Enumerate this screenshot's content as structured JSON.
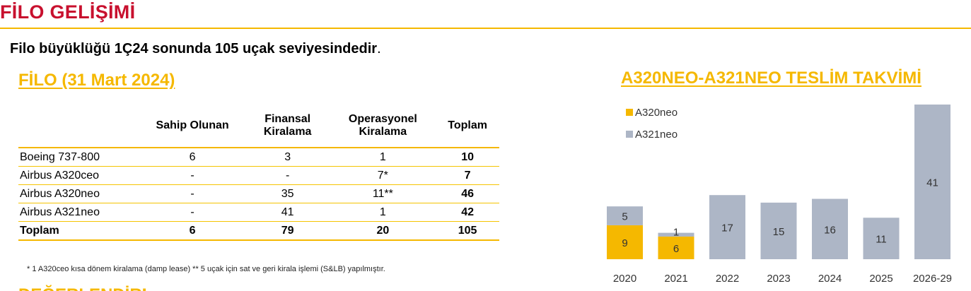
{
  "header": {
    "title": "FİLO GELİŞİMİ",
    "subtitle_bold": "Filo büyüklüğü 1Ç24 sonunda 105 uçak seviyesindedir",
    "subtitle_tail": "."
  },
  "fleet": {
    "title": "FİLO (31 Mart 2024)",
    "columns": [
      "Sahip Olunan",
      "Finansal Kiralama",
      "Operasyonel Kiralama",
      "Toplam"
    ],
    "rows": [
      {
        "type": "Boeing 737-800",
        "owned": "6",
        "finance": "3",
        "operating": "1",
        "total": "10"
      },
      {
        "type": "Airbus A320ceo",
        "owned": "-",
        "finance": "-",
        "operating": "7*",
        "total": "7"
      },
      {
        "type": "Airbus A320neo",
        "owned": "-",
        "finance": "35",
        "operating": "11**",
        "total": "46"
      },
      {
        "type": "Airbus A321neo",
        "owned": "-",
        "finance": "41",
        "operating": "1",
        "total": "42"
      }
    ],
    "total_row": {
      "type": "Toplam",
      "owned": "6",
      "finance": "79",
      "operating": "20",
      "total": "105"
    },
    "footnote": "* 1 A320ceo kısa dönem kiralama (damp lease)  ** 5 uçak için sat ve geri kirala işlemi (S&LB) yapılmıştır."
  },
  "next_section_title": "DEĞERLENDİRME",
  "chart_data": {
    "type": "bar",
    "stacked": true,
    "title": "A320NEO-A321NEO TESLİM TAKVİMİ",
    "categories": [
      "2020",
      "2021",
      "2022",
      "2023",
      "2024",
      "2025",
      "2026-29"
    ],
    "series": [
      {
        "name": "A320neo",
        "color": "#f5b800",
        "values": [
          9,
          6,
          0,
          0,
          0,
          0,
          0
        ]
      },
      {
        "name": "A321neo",
        "color": "#adb6c6",
        "values": [
          5,
          1,
          17,
          15,
          16,
          11,
          41
        ]
      }
    ],
    "legend_position": "top-left",
    "grid": false,
    "ylim": [
      0,
      41
    ]
  }
}
